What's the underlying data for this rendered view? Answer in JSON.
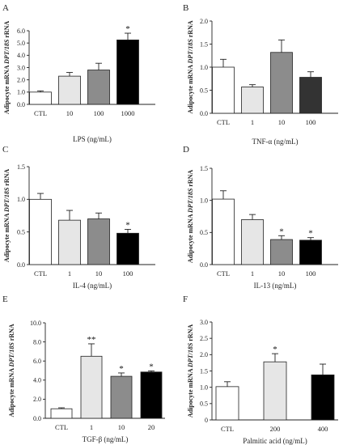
{
  "chart_data": [
    {
      "panel": "A",
      "type": "bar",
      "ylabel": {
        "pre": "Adipocyte mRNA ",
        "it": "DPT/18S",
        "post": " rRNA"
      },
      "xlabel": "LPS (ng/mL)",
      "categories": [
        "CTL",
        "10",
        "100",
        "1000"
      ],
      "values": [
        1.0,
        2.3,
        2.8,
        5.25
      ],
      "errors": [
        0.1,
        0.3,
        0.55,
        0.55
      ],
      "significance": [
        "",
        "",
        "",
        "*"
      ],
      "colors": [
        "#ffffff",
        "#e6e6e6",
        "#8c8c8c",
        "#000000"
      ],
      "ylim": [
        0,
        6.0
      ],
      "yticks": [
        "0.0",
        "1.0",
        "2.0",
        "3.0",
        "4.0",
        "5.0",
        "6.0"
      ]
    },
    {
      "panel": "B",
      "type": "bar",
      "ylabel": {
        "pre": "Adipocyte mRNA ",
        "it": "DPT/18S",
        "post": " rRNA"
      },
      "xlabel": "TNF-α (ng/mL)",
      "categories": [
        "CTL",
        "1",
        "10",
        "100"
      ],
      "values": [
        1.0,
        0.57,
        1.32,
        0.78
      ],
      "errors": [
        0.17,
        0.05,
        0.27,
        0.12
      ],
      "significance": [
        "",
        "",
        "",
        ""
      ],
      "colors": [
        "#ffffff",
        "#e6e6e6",
        "#8c8c8c",
        "#333333"
      ],
      "ylim": [
        0,
        2.0
      ],
      "yticks": [
        "0.0",
        "0.5",
        "1.0",
        "1.5",
        "2.0"
      ]
    },
    {
      "panel": "C",
      "type": "bar",
      "ylabel": {
        "pre": "Adipocyte mRNA ",
        "it": "DPT/18S",
        "post": " rRNA"
      },
      "xlabel": "IL-4 (ng/mL)",
      "categories": [
        "CTL",
        "1",
        "10",
        "100"
      ],
      "values": [
        1.0,
        0.68,
        0.7,
        0.48
      ],
      "errors": [
        0.09,
        0.15,
        0.09,
        0.06
      ],
      "significance": [
        "",
        "",
        "",
        "*"
      ],
      "colors": [
        "#ffffff",
        "#e6e6e6",
        "#8c8c8c",
        "#000000"
      ],
      "ylim": [
        0,
        1.5
      ],
      "yticks": [
        "0.0",
        "0.5",
        "1.0",
        "1.5"
      ]
    },
    {
      "panel": "D",
      "type": "bar",
      "ylabel": {
        "pre": "Adipocyte mRNA ",
        "it": "DPT/18S",
        "post": " rRNA"
      },
      "xlabel": "IL-13 (ng/mL)",
      "categories": [
        "CTL",
        "1",
        "10",
        "100"
      ],
      "values": [
        1.02,
        0.7,
        0.39,
        0.38
      ],
      "errors": [
        0.13,
        0.08,
        0.06,
        0.04
      ],
      "significance": [
        "",
        "",
        "*",
        "*"
      ],
      "colors": [
        "#ffffff",
        "#e6e6e6",
        "#8c8c8c",
        "#000000"
      ],
      "ylim": [
        0,
        1.5
      ],
      "yticks": [
        "0.0",
        "0.5",
        "1.0",
        "1.5"
      ]
    },
    {
      "panel": "E",
      "type": "bar",
      "ylabel": {
        "pre": "Adipocyte mRNA ",
        "it": "DPT/18S",
        "post": " rRNA"
      },
      "xlabel": "TGF-β (ng/mL)",
      "categories": [
        "CTL",
        "1",
        "10",
        "20"
      ],
      "values": [
        1.0,
        6.5,
        4.4,
        4.85
      ],
      "errors": [
        0.1,
        1.3,
        0.35,
        0.12
      ],
      "significance": [
        "",
        "**",
        "*",
        "*"
      ],
      "colors": [
        "#ffffff",
        "#e6e6e6",
        "#8c8c8c",
        "#000000"
      ],
      "ylim": [
        0,
        10.0
      ],
      "yticks": [
        "0.0",
        "2.0",
        "4.0",
        "6.0",
        "8.0",
        "10.0"
      ]
    },
    {
      "panel": "F",
      "type": "bar",
      "ylabel": {
        "pre": "Adipocyte mRNA ",
        "it": "DPT/18S",
        "post": " rRNA"
      },
      "xlabel": "Palmitic acid (ng/mL)",
      "categories": [
        "CTL",
        "200",
        "400"
      ],
      "values": [
        1.02,
        1.78,
        1.38
      ],
      "errors": [
        0.15,
        0.25,
        0.33
      ],
      "significance": [
        "",
        "*",
        ""
      ],
      "colors": [
        "#ffffff",
        "#e6e6e6",
        "#000000"
      ],
      "ylim": [
        0,
        3.0
      ],
      "yticks": [
        "0",
        "0.5",
        "1.0",
        "1.5",
        "2.0",
        "2.5",
        "3.0"
      ]
    }
  ]
}
